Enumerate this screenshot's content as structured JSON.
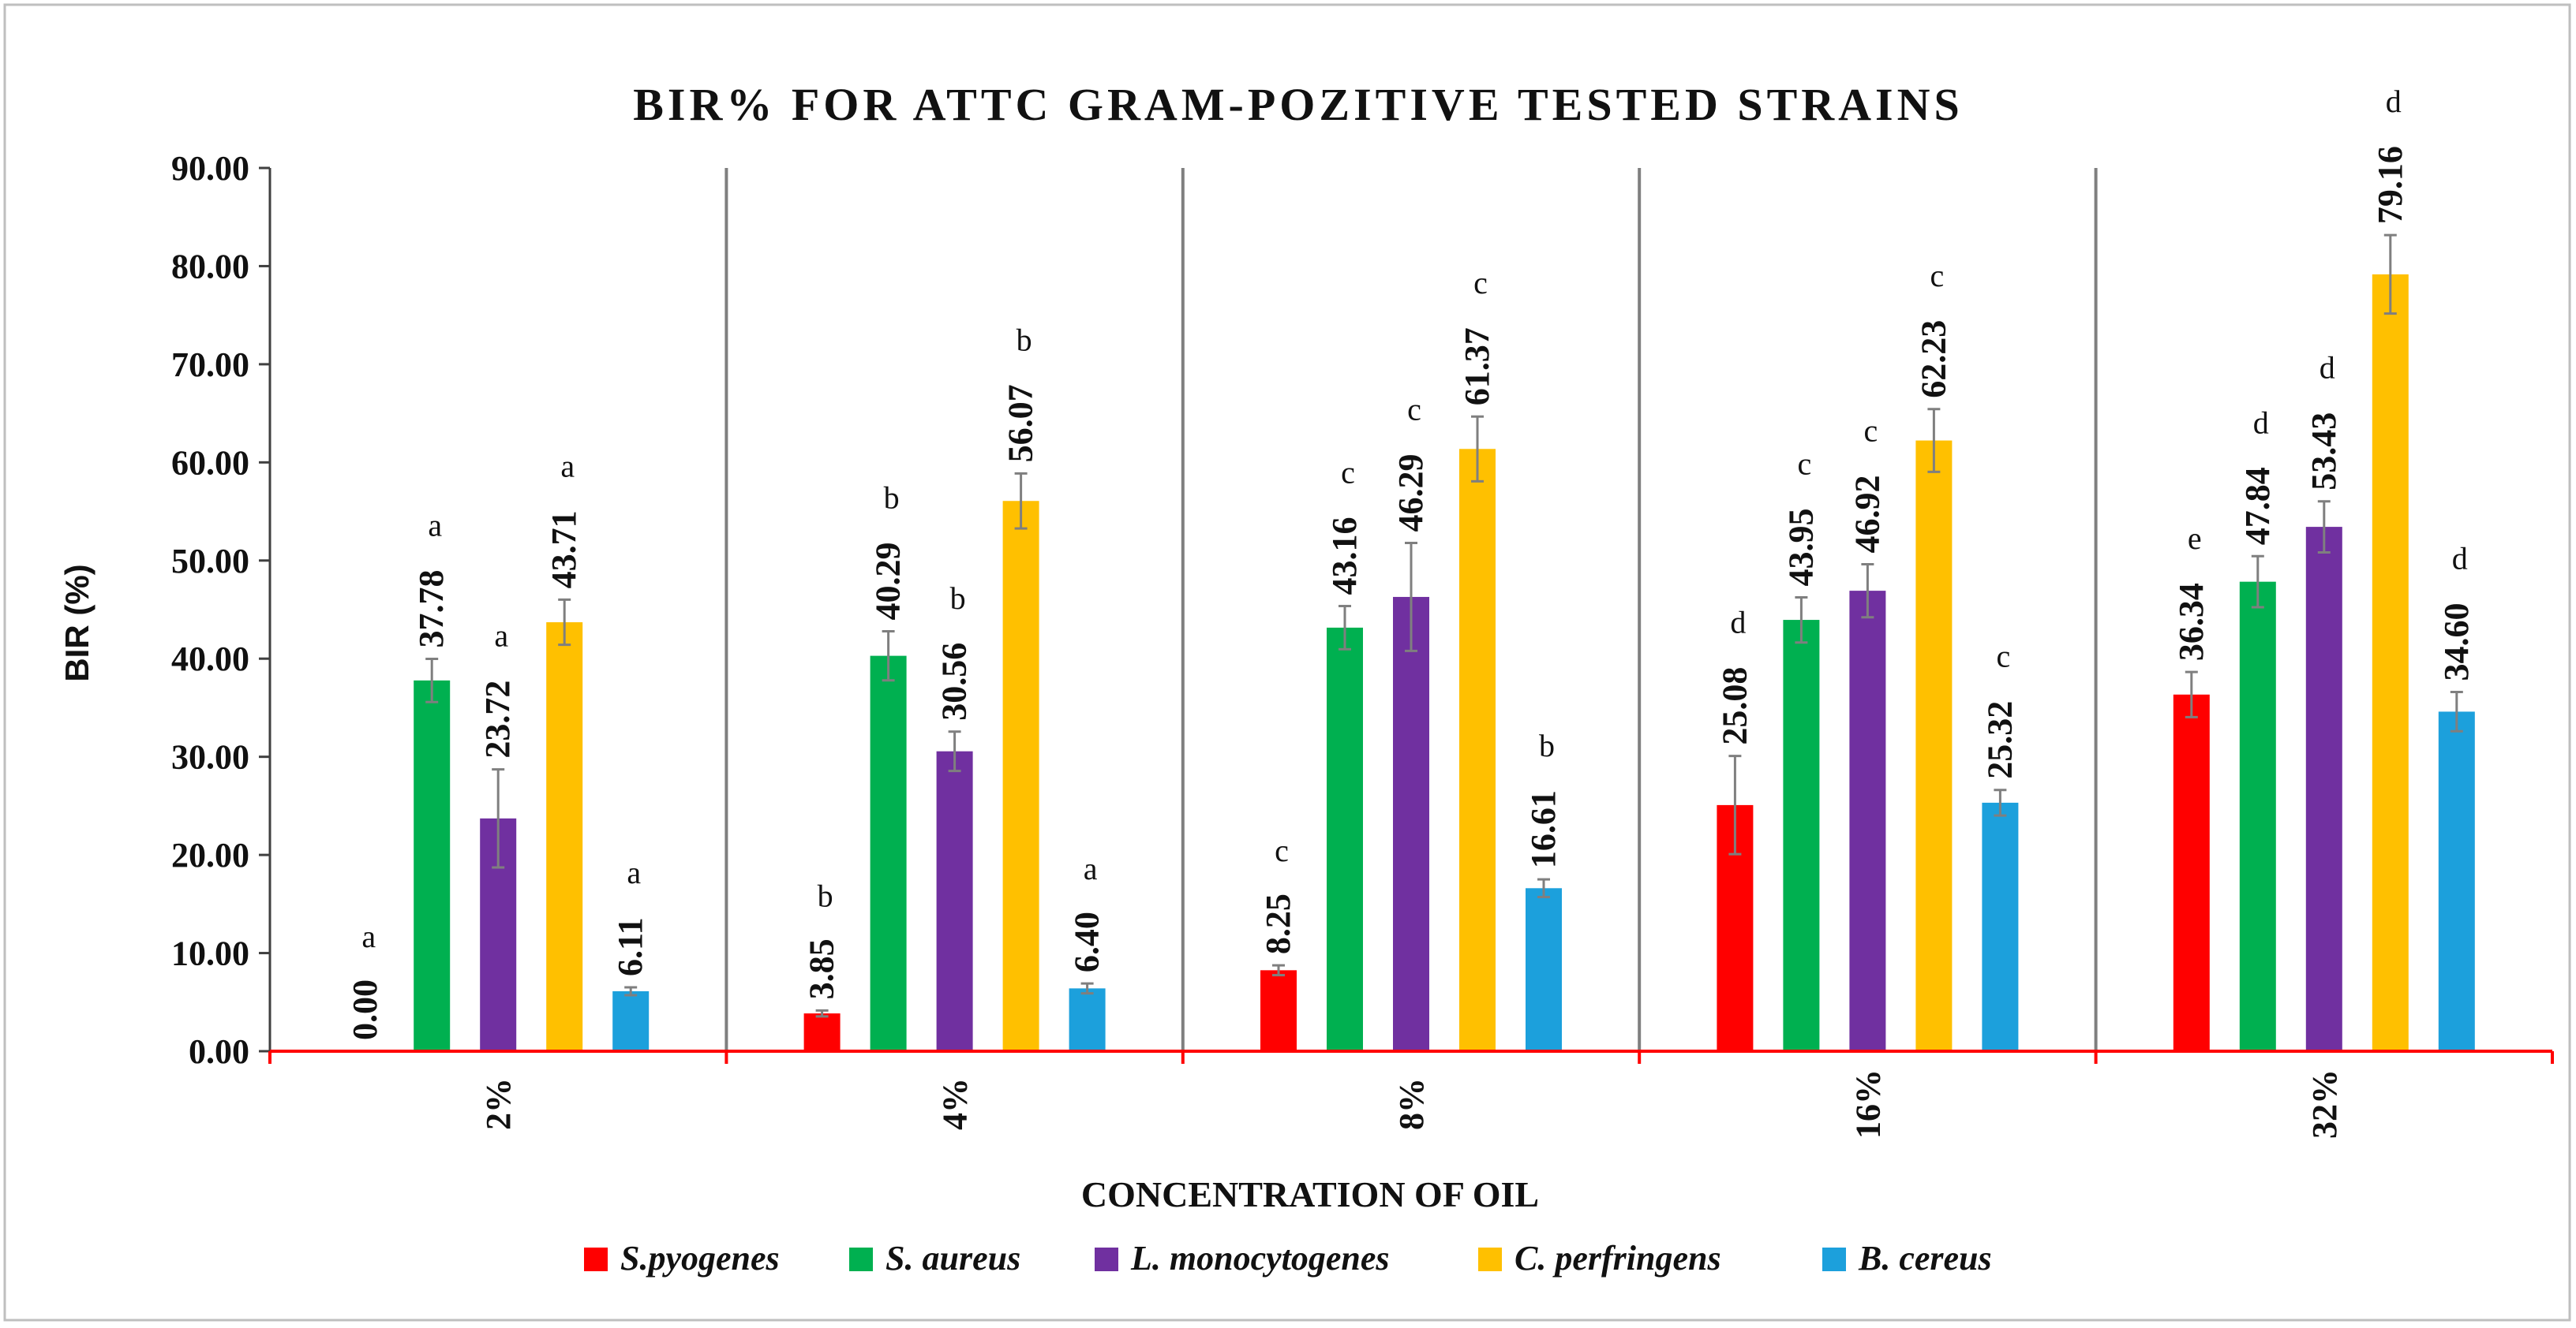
{
  "chart_data": {
    "type": "bar",
    "title": "BIR% FOR ATTC GRAM-POZITIVE TESTED STRAINS",
    "xlabel": "CONCENTRATION OF OIL",
    "ylabel": "BIR (%)",
    "ylim": [
      0,
      90
    ],
    "ytick_step": 10,
    "ytick_labels": [
      "0.00",
      "10.00",
      "20.00",
      "30.00",
      "40.00",
      "50.00",
      "60.00",
      "70.00",
      "80.00",
      "90.00"
    ],
    "grid": false,
    "legend_position": "bottom",
    "categories": [
      "2%",
      "4%",
      "8%",
      "16%",
      "32%"
    ],
    "series": [
      {
        "name": "S.pyogenes",
        "color": "#ff0000",
        "values": [
          0.0,
          3.85,
          8.25,
          25.08,
          36.34
        ],
        "value_labels": [
          "0.00",
          "3.85",
          "8.25",
          "25.08",
          "36.34"
        ],
        "errors": [
          0,
          0.3,
          0.5,
          5.0,
          2.3
        ],
        "letters": [
          "a",
          "b",
          "c",
          "d",
          "e"
        ]
      },
      {
        "name": "S. aureus",
        "color": "#00b050",
        "values": [
          37.78,
          40.29,
          43.16,
          43.95,
          47.84
        ],
        "value_labels": [
          "37.78",
          "40.29",
          "43.16",
          "43.95",
          "47.84"
        ],
        "errors": [
          2.2,
          2.5,
          2.2,
          2.3,
          2.6
        ],
        "letters": [
          "a",
          "b",
          "c",
          "c",
          "d"
        ]
      },
      {
        "name": "L. monocytogenes",
        "color": "#7030a0",
        "values": [
          23.72,
          30.56,
          46.29,
          46.92,
          53.43
        ],
        "value_labels": [
          "23.72",
          "30.56",
          "46.29",
          "46.92",
          "53.43"
        ],
        "errors": [
          5.0,
          2.0,
          5.5,
          2.7,
          2.6
        ],
        "letters": [
          "a",
          "b",
          "c",
          "c",
          "d"
        ]
      },
      {
        "name": "C. perfringens",
        "color": "#ffc000",
        "values": [
          43.71,
          56.07,
          61.37,
          62.23,
          79.16
        ],
        "value_labels": [
          "43.71",
          "56.07",
          "61.37",
          "62.23",
          "79.16"
        ],
        "errors": [
          2.3,
          2.8,
          3.3,
          3.2,
          4.0
        ],
        "letters": [
          "a",
          "b",
          "c",
          "c",
          "d"
        ]
      },
      {
        "name": "B. cereus",
        "color": "#1ca0dc",
        "values": [
          6.11,
          6.4,
          16.61,
          25.32,
          34.6
        ],
        "value_labels": [
          "6.11",
          "6.40",
          "16.61",
          "25.32",
          "34.60"
        ],
        "errors": [
          0.4,
          0.5,
          0.9,
          1.3,
          2.0
        ],
        "letters": [
          "a",
          "a",
          "b",
          "c",
          "d"
        ]
      }
    ]
  }
}
